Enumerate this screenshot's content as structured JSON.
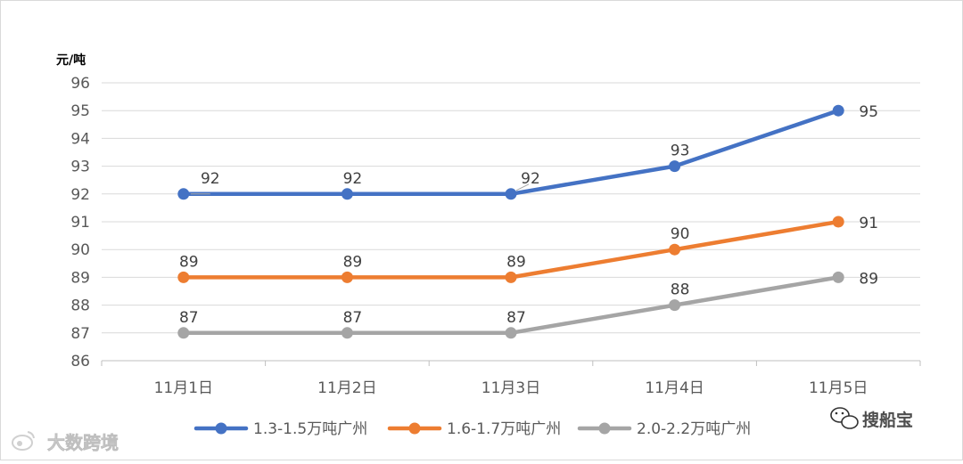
{
  "chart_data": {
    "type": "line",
    "ylabel": "元/吨",
    "ylim": [
      86,
      96
    ],
    "yticks": [
      "96",
      "95",
      "94",
      "93",
      "92",
      "91",
      "90",
      "89",
      "88",
      "87",
      "86"
    ],
    "categories": [
      "11月1日",
      "11月2日",
      "11月3日",
      "11月4日",
      "11月5日"
    ],
    "grid": true,
    "legend_position": "bottom",
    "series": [
      {
        "name": "1.3-1.5万吨广州",
        "color": "#4472c4",
        "values": [
          92,
          92,
          92,
          93,
          95
        ]
      },
      {
        "name": "1.6-1.7万吨广州",
        "color": "#ed7d31",
        "values": [
          89,
          89,
          89,
          90,
          91
        ]
      },
      {
        "name": "2.0-2.2万吨广州",
        "color": "#a5a5a5",
        "values": [
          87,
          87,
          87,
          88,
          89
        ]
      }
    ]
  },
  "watermarks": {
    "left": "大数跨境",
    "right": "搜船宝",
    "left_icon": "weibo-icon",
    "right_icon": "wechat-icon"
  }
}
